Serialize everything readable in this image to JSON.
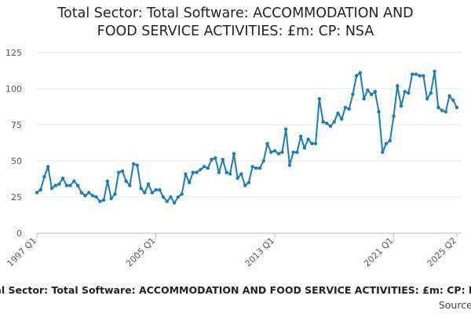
{
  "title_lines": [
    "Total Sector: Total Software: ACCOMMODATION AND",
    "FOOD SERVICE ACTIVITIES: £m: CP: NSA"
  ],
  "footer_caption": "Total Sector: Total Software: ACCOMMODATION AND FOOD SERVICE ACTIVITIES: £m: CP: NSA",
  "footer_source": "Source: ",
  "colors": {
    "line": "#1a7db8",
    "grid": "#e6e6e6",
    "axis": "#bbbbbb",
    "text": "#555555"
  },
  "chart_data": {
    "type": "line",
    "title": "Total Sector: Total Software: ACCOMMODATION AND FOOD SERVICE ACTIVITIES: £m: CP: NSA",
    "xlabel": "",
    "ylabel": "",
    "ylim": [
      0,
      125
    ],
    "yticks": [
      0,
      25,
      50,
      75,
      100,
      125
    ],
    "grid": true,
    "x_tick_labels": [
      "1997 Q1",
      "2005 Q1",
      "2013 Q1",
      "2021 Q1",
      "2025 Q2"
    ],
    "x_tick_indices": [
      0,
      32,
      64,
      96,
      113
    ],
    "series": [
      {
        "name": "Total Sector: Total Software: ACCOMMODATION AND FOOD SERVICE ACTIVITIES: £m: CP: NSA",
        "start": "1997 Q1",
        "values": [
          28,
          30,
          39,
          46,
          31,
          33,
          34,
          38,
          33,
          33,
          36,
          33,
          28,
          26,
          28,
          26,
          25,
          22,
          23,
          36,
          24,
          27,
          42,
          43,
          36,
          33,
          48,
          47,
          31,
          28,
          34,
          28,
          30,
          30,
          25,
          22,
          25,
          21,
          25,
          27,
          41,
          35,
          42,
          42,
          44,
          46,
          45,
          51,
          52,
          42,
          51,
          42,
          41,
          55,
          38,
          41,
          33,
          35,
          46,
          45,
          45,
          50,
          62,
          56,
          57,
          55,
          56,
          72,
          47,
          56,
          56,
          67,
          59,
          65,
          62,
          62,
          93,
          77,
          76,
          74,
          77,
          83,
          79,
          87,
          86,
          96,
          109,
          111,
          93,
          99,
          96,
          98,
          84,
          56,
          62,
          64,
          81,
          102,
          88,
          98,
          97,
          110,
          110,
          109,
          109,
          93,
          97,
          112,
          87,
          85,
          84,
          95,
          92,
          87
        ]
      }
    ]
  }
}
